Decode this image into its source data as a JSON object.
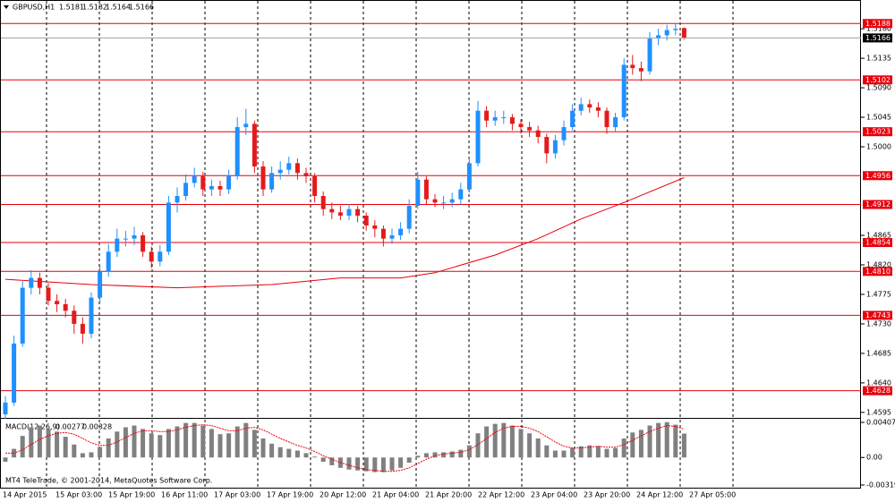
{
  "chart_data": {
    "type": "candlestick",
    "symbol": "GBPUSD,H1",
    "up_color": "#1e90ff",
    "down_color": "#e41a1c",
    "open": [
      1.4592,
      1.461,
      1.47,
      1.4785,
      1.48,
      1.4785,
      1.4765,
      1.476,
      1.475,
      1.473,
      1.4715,
      1.477,
      1.481,
      1.484,
      1.486,
      1.486,
      1.4865,
      1.484,
      1.4825,
      1.484,
      1.4915,
      1.4925,
      1.4945,
      1.4955,
      1.4935,
      1.494,
      1.4935,
      1.4955,
      1.503,
      1.5035,
      1.497,
      1.4935,
      1.496,
      1.4965,
      1.4975,
      1.496,
      1.4955,
      1.4925,
      1.4905,
      1.49,
      1.4895,
      1.4905,
      1.4895,
      1.488,
      1.4875,
      1.486,
      1.4865,
      1.4875,
      1.491,
      1.495,
      1.492,
      1.4915,
      1.4915,
      1.492,
      1.4935,
      1.4975,
      1.5055,
      1.504,
      1.5045,
      1.5045,
      1.5035,
      1.503,
      1.5025,
      1.5015,
      1.499,
      1.501,
      1.503,
      1.5055,
      1.5065,
      1.506,
      1.5055,
      1.503,
      1.5045,
      1.5125,
      1.512,
      1.5115,
      1.5165,
      1.517,
      1.5178,
      1.5181
    ],
    "high": [
      1.462,
      1.4712,
      1.4795,
      1.4812,
      1.4808,
      1.4792,
      1.4775,
      1.4768,
      1.4758,
      1.474,
      1.4778,
      1.482,
      1.4852,
      1.4875,
      1.4872,
      1.4878,
      1.487,
      1.4848,
      1.485,
      1.4925,
      1.4938,
      1.4958,
      1.4968,
      1.4962,
      1.495,
      1.4948,
      1.4965,
      1.5045,
      1.5058,
      1.504,
      1.4978,
      1.497,
      1.4978,
      1.4985,
      1.4982,
      1.4968,
      1.496,
      1.4932,
      1.4915,
      1.491,
      1.4912,
      1.491,
      1.49,
      1.4888,
      1.488,
      1.4875,
      1.4885,
      1.492,
      1.4962,
      1.4955,
      1.4928,
      1.4925,
      1.493,
      1.4945,
      1.4985,
      1.507,
      1.5062,
      1.5055,
      1.5055,
      1.505,
      1.5042,
      1.5038,
      1.5032,
      1.502,
      1.5018,
      1.504,
      1.5065,
      1.5075,
      1.5072,
      1.5068,
      1.506,
      1.5052,
      1.5135,
      1.514,
      1.513,
      1.5175,
      1.518,
      1.5186,
      1.5188,
      1.5182
    ],
    "low": [
      1.4585,
      1.4605,
      1.4695,
      1.4775,
      1.4775,
      1.4758,
      1.4748,
      1.474,
      1.4715,
      1.47,
      1.4708,
      1.4762,
      1.4802,
      1.4832,
      1.4848,
      1.485,
      1.4832,
      1.4815,
      1.4818,
      1.4835,
      1.49,
      1.4918,
      1.4938,
      1.4925,
      1.4925,
      1.4925,
      1.4928,
      1.495,
      1.5018,
      1.496,
      1.4925,
      1.493,
      1.495,
      1.4958,
      1.495,
      1.4945,
      1.4915,
      1.4895,
      1.489,
      1.4888,
      1.4888,
      1.4885,
      1.4872,
      1.4862,
      1.4848,
      1.4852,
      1.4858,
      1.4868,
      1.4905,
      1.4912,
      1.4908,
      1.4905,
      1.4908,
      1.4912,
      1.493,
      1.497,
      1.503,
      1.5032,
      1.5035,
      1.5025,
      1.502,
      1.5015,
      1.5005,
      1.4975,
      1.4982,
      1.5002,
      1.5025,
      1.5048,
      1.5052,
      1.5045,
      1.502,
      1.5022,
      1.504,
      1.511,
      1.51,
      1.511,
      1.5155,
      1.5162,
      1.517,
      1.5164
    ],
    "close": [
      1.461,
      1.47,
      1.4785,
      1.48,
      1.4785,
      1.4765,
      1.476,
      1.475,
      1.473,
      1.4715,
      1.477,
      1.481,
      1.484,
      1.486,
      1.486,
      1.4865,
      1.484,
      1.4825,
      1.484,
      1.4915,
      1.4925,
      1.4945,
      1.4955,
      1.4935,
      1.494,
      1.4935,
      1.4955,
      1.503,
      1.5035,
      1.497,
      1.4935,
      1.496,
      1.4965,
      1.4975,
      1.496,
      1.4955,
      1.4925,
      1.4905,
      1.49,
      1.4895,
      1.4905,
      1.4895,
      1.488,
      1.4875,
      1.486,
      1.4865,
      1.4875,
      1.491,
      1.495,
      1.492,
      1.4915,
      1.4915,
      1.492,
      1.4935,
      1.4975,
      1.5055,
      1.504,
      1.5045,
      1.5045,
      1.5035,
      1.503,
      1.5025,
      1.5015,
      1.499,
      1.501,
      1.503,
      1.5055,
      1.5065,
      1.506,
      1.5055,
      1.503,
      1.5045,
      1.5125,
      1.512,
      1.5115,
      1.5165,
      1.517,
      1.5178,
      1.518,
      1.5166
    ],
    "ylim": [
      1.4588,
      1.5202
    ],
    "yticks": [
      {
        "value": 1.518,
        "label": "1.5180"
      },
      1.5135,
      {
        "value": 1.509,
        "label": "1.5090"
      },
      1.5045,
      {
        "value": 1.5,
        "label": "1.5000"
      },
      1.4865,
      {
        "value": 1.482,
        "label": "1.4820"
      },
      1.4775,
      {
        "value": 1.473,
        "label": "1.4730"
      },
      1.4685,
      {
        "value": 1.464,
        "label": "1.4640"
      },
      1.4595
    ],
    "levels": {
      "color": "#e8000b",
      "values": [
        1.5188,
        1.5102,
        1.5023,
        1.4956,
        1.4912,
        1.4854,
        {
          "value": 1.481,
          "label": "1.4810"
        },
        1.4743,
        1.4628
      ]
    },
    "ma": {
      "color": "#e8000b",
      "x": [
        0,
        10,
        20,
        31,
        39,
        46,
        50,
        57,
        62,
        67,
        72,
        79
      ],
      "values": [
        1.4798,
        1.479,
        1.4785,
        1.479,
        1.48,
        1.48,
        1.4808,
        1.4835,
        1.486,
        1.489,
        1.4915,
        1.4953
      ]
    },
    "x_labels": [
      "14 Apr 2015",
      "15 Apr 03:00",
      "15 Apr 19:00",
      "16 Apr 11:00",
      "17 Apr 03:00",
      "17 Apr 19:00",
      "20 Apr 12:00",
      "21 Apr 04:00",
      "21 Apr 20:00",
      "22 Apr 12:00",
      "23 Apr 04:00",
      "23 Apr 20:00",
      "24 Apr 12:00",
      "27 Apr 05:00"
    ],
    "macd": {
      "type": "bar",
      "title": "MACD(12,26,9)",
      "color": "#808080",
      "values": [
        -0.0005,
        0.001,
        0.0025,
        0.0035,
        0.0037,
        0.0033,
        0.003,
        0.0024,
        0.0015,
        0.0005,
        0.0006,
        0.0012,
        0.0022,
        0.003,
        0.0035,
        0.0037,
        0.0033,
        0.0028,
        0.0026,
        0.0033,
        0.0036,
        0.004,
        0.004,
        0.0037,
        0.0033,
        0.0027,
        0.0028,
        0.0036,
        0.004,
        0.0032,
        0.0022,
        0.0016,
        0.0012,
        0.001,
        0.0008,
        0.0005,
        0.0001,
        -0.0005,
        -0.0009,
        -0.0012,
        -0.0014,
        -0.0015,
        -0.0016,
        -0.0017,
        -0.0017,
        -0.0015,
        -0.0012,
        -0.0006,
        0.0002,
        0.0005,
        0.0006,
        0.0006,
        0.0007,
        0.0009,
        0.0014,
        0.0028,
        0.0036,
        0.0039,
        0.004,
        0.0037,
        0.0033,
        0.0028,
        0.0022,
        0.0014,
        0.0008,
        0.0008,
        0.0011,
        0.0013,
        0.0014,
        0.0013,
        0.001,
        0.0011,
        0.0022,
        0.0029,
        0.0032,
        0.0037,
        0.004,
        0.0041,
        0.0038,
        0.00277
      ],
      "signal": {
        "color": "#e8000b",
        "values": [
          0.0005,
          0.0005,
          0.0009,
          0.0015,
          0.0021,
          0.0025,
          0.0028,
          0.0029,
          0.0027,
          0.0022,
          0.0017,
          0.0014,
          0.0014,
          0.0018,
          0.0023,
          0.0028,
          0.0031,
          0.0031,
          0.003,
          0.003,
          0.0032,
          0.0035,
          0.0037,
          0.0038,
          0.0037,
          0.0034,
          0.0031,
          0.0031,
          0.0034,
          0.0035,
          0.0032,
          0.0027,
          0.0022,
          0.0018,
          0.0014,
          0.0011,
          0.0007,
          0.0002,
          -0.0002,
          -0.0006,
          -0.0009,
          -0.0012,
          -0.0014,
          -0.0015,
          -0.0016,
          -0.0016,
          -0.0015,
          -0.0012,
          -0.0007,
          -0.0002,
          0.0002,
          0.0004,
          0.0005,
          0.0006,
          0.0009,
          0.0015,
          0.0022,
          0.0029,
          0.0034,
          0.0036,
          0.0036,
          0.0034,
          0.003,
          0.0024,
          0.0018,
          0.0013,
          0.0011,
          0.0011,
          0.0012,
          0.0013,
          0.0012,
          0.0012,
          0.0015,
          0.002,
          0.0025,
          0.003,
          0.0034,
          0.0037,
          0.0036,
          0.00328
        ]
      },
      "ylim": [
        -0.00319,
        0.00407
      ],
      "yticks": [
        0.00407,
        {
          "value": 0,
          "label": "0.00"
        },
        -0.00319
      ]
    },
    "watermark": "MT4 TeleTrade, © 2001-2014, MetaQuotes Software Corp."
  }
}
